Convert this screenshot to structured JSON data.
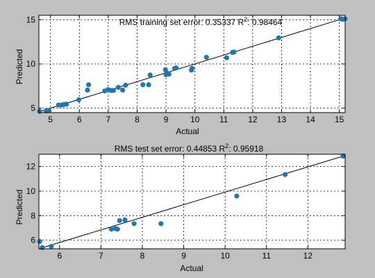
{
  "colors": {
    "figure_background": "#c0c0c0",
    "axes_background": "#ffffff",
    "marker": "#1f77b4",
    "fit_line": "#000000",
    "grid": "#000000"
  },
  "chart_data": [
    {
      "type": "scatter",
      "title_prefix": "RMS training set error: 0.35337",
      "title_r2_label": "R",
      "title_r2_sup": "2",
      "title_r2_value": ": 0.98464",
      "xlabel": "Actual",
      "ylabel": "Predicted",
      "xlim": [
        4.6,
        15.2
      ],
      "ylim": [
        4.5,
        15.5
      ],
      "xticks": [
        5,
        6,
        7,
        8,
        9,
        10,
        11,
        12,
        13,
        14,
        15
      ],
      "yticks": [
        5,
        10,
        15
      ],
      "grid": true,
      "fit_line": {
        "x": [
          4.6,
          15.2
        ],
        "y": [
          4.6,
          15.2
        ]
      },
      "points": {
        "x": [
          4.62,
          4.85,
          4.95,
          5.28,
          5.38,
          5.45,
          5.55,
          5.98,
          6.28,
          6.32,
          6.88,
          7.0,
          7.1,
          7.18,
          7.35,
          7.5,
          7.6,
          8.2,
          8.4,
          8.45,
          8.98,
          9.0,
          9.02,
          9.1,
          9.3,
          9.35,
          9.88,
          9.9,
          10.4,
          11.1,
          11.3,
          11.35,
          12.9,
          15.05,
          15.12,
          15.2
        ],
        "y": [
          4.65,
          4.7,
          4.75,
          5.35,
          5.35,
          5.4,
          5.45,
          5.95,
          7.05,
          7.65,
          6.95,
          7.1,
          7.0,
          7.0,
          7.35,
          7.05,
          7.6,
          7.65,
          7.65,
          8.75,
          9.35,
          8.8,
          9.0,
          8.85,
          9.5,
          9.55,
          9.3,
          9.5,
          10.75,
          10.7,
          11.3,
          11.35,
          12.95,
          15.1,
          15.05,
          15.1
        ]
      }
    },
    {
      "type": "scatter",
      "title_prefix": "RMS test set error: 0.44853",
      "title_r2_label": "R",
      "title_r2_sup": "2",
      "title_r2_value": ": 0.95918",
      "xlabel": "Actual",
      "ylabel": "Predicted",
      "xlim": [
        5.5,
        12.9
      ],
      "ylim": [
        5.3,
        13.0
      ],
      "xticks": [
        6,
        7,
        8,
        9,
        10,
        11,
        12
      ],
      "yticks": [
        6,
        8,
        10,
        12
      ],
      "grid": true,
      "fit_line": {
        "x": [
          5.5,
          12.9
        ],
        "y": [
          5.3,
          12.9
        ]
      },
      "points": {
        "x": [
          5.52,
          5.58,
          5.8,
          7.25,
          7.35,
          7.4,
          7.45,
          7.58,
          7.8,
          8.45,
          10.28,
          11.45,
          12.85
        ],
        "y": [
          5.9,
          5.4,
          5.5,
          6.9,
          6.95,
          6.9,
          7.6,
          7.65,
          7.35,
          7.35,
          9.6,
          11.35,
          12.85
        ]
      }
    }
  ]
}
